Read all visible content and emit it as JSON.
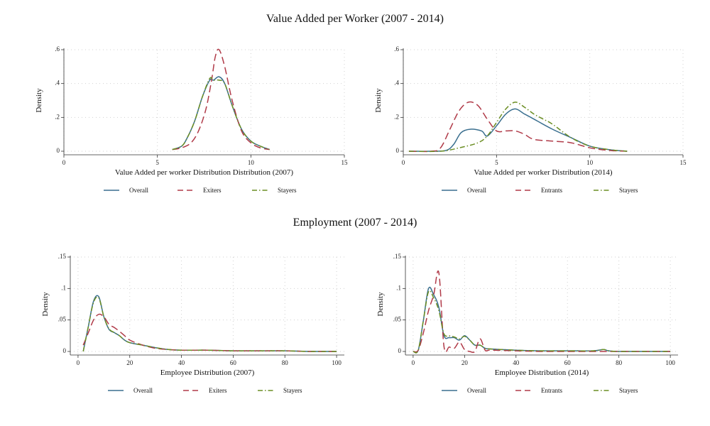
{
  "section_titles": {
    "top": "Value Added per Worker (2007 - 2014)",
    "bottom": "Employment (2007 - 2014)"
  },
  "colors": {
    "Overall": "#3a6f8f",
    "Exiters": "#b03a48",
    "Entrants": "#b03a48",
    "Stayers": "#6b8e23",
    "grid": "#d0d0d0",
    "axis": "#333333"
  },
  "chart_data": [
    {
      "type": "line",
      "section": "top",
      "xlabel": "Value Added per worker Distribution Distribution (2007)",
      "ylabel": "Density",
      "xlim": [
        0,
        15
      ],
      "ylim": [
        0,
        0.6
      ],
      "xticks": [
        0,
        5,
        10,
        15
      ],
      "xtick_labels": [
        "0",
        "5",
        "10",
        "15"
      ],
      "yticks": [
        0,
        0.2,
        0.4,
        0.6
      ],
      "ytick_labels": [
        "0",
        ".2",
        ".4",
        ".6"
      ],
      "series": [
        {
          "name": "Overall",
          "dash": "solid",
          "x": [
            5.8,
            6.3,
            6.6,
            7.0,
            7.4,
            7.8,
            8.0,
            8.3,
            8.6,
            9.0,
            9.5,
            10.0,
            10.5,
            11.0
          ],
          "y": [
            0.01,
            0.03,
            0.08,
            0.18,
            0.32,
            0.42,
            0.42,
            0.44,
            0.4,
            0.27,
            0.13,
            0.06,
            0.03,
            0.01
          ]
        },
        {
          "name": "Exiters",
          "dash": "long",
          "x": [
            5.8,
            6.3,
            6.8,
            7.2,
            7.6,
            7.9,
            8.1,
            8.3,
            8.6,
            9.0,
            9.5,
            10.0,
            10.5,
            11.0
          ],
          "y": [
            0.01,
            0.02,
            0.05,
            0.12,
            0.25,
            0.42,
            0.56,
            0.6,
            0.5,
            0.3,
            0.12,
            0.05,
            0.02,
            0.01
          ]
        },
        {
          "name": "Stayers",
          "dash": "dashdot",
          "x": [
            5.8,
            6.3,
            6.6,
            7.0,
            7.4,
            7.8,
            8.0,
            8.3,
            8.6,
            9.0,
            9.5,
            10.0,
            10.5,
            11.0
          ],
          "y": [
            0.01,
            0.03,
            0.08,
            0.18,
            0.32,
            0.43,
            0.42,
            0.42,
            0.4,
            0.27,
            0.13,
            0.06,
            0.03,
            0.01
          ]
        }
      ],
      "legend": [
        "Overall",
        "Exiters",
        "Stayers"
      ]
    },
    {
      "type": "line",
      "section": "top",
      "xlabel": "Value Added per worker Distribution (2014)",
      "ylabel": "Density",
      "xlim": [
        0,
        15
      ],
      "ylim": [
        0,
        0.6
      ],
      "xticks": [
        0,
        5,
        10,
        15
      ],
      "xtick_labels": [
        "0",
        "5",
        "10",
        "15"
      ],
      "yticks": [
        0,
        0.2,
        0.4,
        0.6
      ],
      "ytick_labels": [
        "0",
        ".2",
        ".4",
        ".6"
      ],
      "series": [
        {
          "name": "Overall",
          "dash": "solid",
          "x": [
            0.3,
            1.5,
            2.3,
            2.7,
            3.1,
            3.6,
            4.2,
            4.5,
            5.0,
            5.5,
            6.0,
            6.5,
            7.0,
            8.0,
            9.0,
            10.0,
            11.0,
            12.0
          ],
          "y": [
            0.0,
            0.0,
            0.005,
            0.04,
            0.11,
            0.13,
            0.12,
            0.09,
            0.15,
            0.22,
            0.25,
            0.22,
            0.19,
            0.13,
            0.08,
            0.03,
            0.01,
            0.0
          ]
        },
        {
          "name": "Entrants",
          "dash": "long",
          "x": [
            0.3,
            1.5,
            2.0,
            2.5,
            3.0,
            3.5,
            4.0,
            4.5,
            5.0,
            5.5,
            6.0,
            6.5,
            7.0,
            8.0,
            9.0,
            10.0,
            11.0,
            12.0
          ],
          "y": [
            0.0,
            0.0,
            0.02,
            0.13,
            0.24,
            0.29,
            0.27,
            0.19,
            0.12,
            0.12,
            0.12,
            0.1,
            0.07,
            0.06,
            0.05,
            0.02,
            0.005,
            0.0
          ]
        },
        {
          "name": "Stayers",
          "dash": "dashdot",
          "x": [
            0.3,
            2.0,
            3.0,
            4.0,
            4.5,
            5.0,
            5.5,
            6.0,
            6.5,
            7.0,
            7.5,
            8.0,
            9.0,
            10.0,
            11.0,
            12.0
          ],
          "y": [
            0.0,
            0.0,
            0.02,
            0.05,
            0.09,
            0.17,
            0.25,
            0.29,
            0.26,
            0.22,
            0.19,
            0.16,
            0.08,
            0.03,
            0.01,
            0.0
          ]
        }
      ],
      "legend": [
        "Overall",
        "Entrants",
        "Stayers"
      ]
    },
    {
      "type": "line",
      "section": "bottom",
      "xlabel": "Employee Distribution (2007)",
      "ylabel": "Density",
      "xlim": [
        -3,
        103
      ],
      "ylim": [
        0,
        0.15
      ],
      "xticks": [
        0,
        20,
        40,
        60,
        80,
        100
      ],
      "xtick_labels": [
        "0",
        "20",
        "40",
        "60",
        "80",
        "100"
      ],
      "yticks": [
        0,
        0.05,
        0.1,
        0.15
      ],
      "ytick_labels": [
        "0",
        ".05",
        ".1",
        ".15"
      ],
      "series": [
        {
          "name": "Overall",
          "dash": "solid",
          "x": [
            2,
            4,
            6,
            8,
            10,
            12,
            14,
            16,
            18,
            20,
            25,
            30,
            35,
            40,
            50,
            60,
            70,
            80,
            90,
            100
          ],
          "y": [
            0.0,
            0.04,
            0.08,
            0.087,
            0.055,
            0.035,
            0.03,
            0.025,
            0.018,
            0.014,
            0.01,
            0.006,
            0.003,
            0.002,
            0.002,
            0.001,
            0.001,
            0.001,
            0.0,
            0.0
          ]
        },
        {
          "name": "Exiters",
          "dash": "long",
          "x": [
            2,
            4,
            6,
            8,
            10,
            12,
            14,
            16,
            18,
            20,
            25,
            30,
            35,
            40,
            50,
            60,
            70,
            80,
            90,
            100
          ],
          "y": [
            0.01,
            0.03,
            0.05,
            0.059,
            0.055,
            0.043,
            0.038,
            0.032,
            0.025,
            0.018,
            0.01,
            0.005,
            0.003,
            0.002,
            0.002,
            0.001,
            0.001,
            0.001,
            0.0,
            0.0
          ]
        },
        {
          "name": "Stayers",
          "dash": "dashdot",
          "x": [
            2,
            4,
            6,
            8,
            10,
            12,
            14,
            16,
            18,
            20,
            25,
            30,
            35,
            40,
            50,
            60,
            70,
            80,
            90,
            100
          ],
          "y": [
            0.0,
            0.04,
            0.078,
            0.085,
            0.055,
            0.036,
            0.03,
            0.025,
            0.018,
            0.014,
            0.01,
            0.006,
            0.003,
            0.002,
            0.002,
            0.001,
            0.001,
            0.001,
            0.0,
            0.0
          ]
        }
      ],
      "legend": [
        "Overall",
        "Exiters",
        "Stayers"
      ]
    },
    {
      "type": "line",
      "section": "bottom",
      "xlabel": "Employee Distribution (2014)",
      "ylabel": "Density",
      "xlim": [
        -3,
        103
      ],
      "ylim": [
        0,
        0.15
      ],
      "xticks": [
        0,
        20,
        40,
        60,
        80,
        100
      ],
      "xtick_labels": [
        "0",
        "20",
        "40",
        "60",
        "80",
        "100"
      ],
      "yticks": [
        0,
        0.05,
        0.1,
        0.15
      ],
      "ytick_labels": [
        "0",
        ".05",
        ".1",
        ".15"
      ],
      "series": [
        {
          "name": "Overall",
          "dash": "solid",
          "x": [
            0,
            2,
            4,
            6,
            8,
            10,
            12,
            14,
            16,
            18,
            20,
            22,
            24,
            26,
            28,
            30,
            40,
            50,
            60,
            70,
            74,
            76,
            80,
            90,
            100
          ],
          "y": [
            0.0,
            0.002,
            0.05,
            0.1,
            0.09,
            0.07,
            0.025,
            0.022,
            0.022,
            0.018,
            0.025,
            0.018,
            0.01,
            0.01,
            0.005,
            0.004,
            0.002,
            0.001,
            0.001,
            0.001,
            0.003,
            0.001,
            0.0,
            0.0,
            0.0
          ]
        },
        {
          "name": "Entrants",
          "dash": "long",
          "x": [
            0,
            2,
            4,
            6,
            8,
            10,
            12,
            14,
            16,
            18,
            20,
            22,
            24,
            26,
            28,
            30,
            40,
            50,
            60,
            70,
            80,
            90,
            100
          ],
          "y": [
            0.0,
            0.002,
            0.03,
            0.065,
            0.09,
            0.125,
            0.008,
            0.007,
            0.005,
            0.015,
            0.003,
            0.0,
            0.0,
            0.02,
            0.002,
            0.002,
            0.001,
            0.0,
            0.0,
            0.0,
            0.0,
            0.0,
            0.0
          ]
        },
        {
          "name": "Stayers",
          "dash": "dashdot",
          "x": [
            0,
            2,
            4,
            6,
            8,
            10,
            12,
            14,
            16,
            18,
            20,
            22,
            24,
            26,
            28,
            30,
            40,
            50,
            60,
            70,
            74,
            76,
            80,
            90,
            100
          ],
          "y": [
            0.0,
            0.002,
            0.05,
            0.095,
            0.085,
            0.065,
            0.028,
            0.025,
            0.023,
            0.02,
            0.024,
            0.018,
            0.01,
            0.01,
            0.005,
            0.004,
            0.002,
            0.001,
            0.001,
            0.001,
            0.003,
            0.001,
            0.0,
            0.0,
            0.0
          ]
        }
      ],
      "legend": [
        "Overall",
        "Entrants",
        "Stayers"
      ]
    }
  ]
}
